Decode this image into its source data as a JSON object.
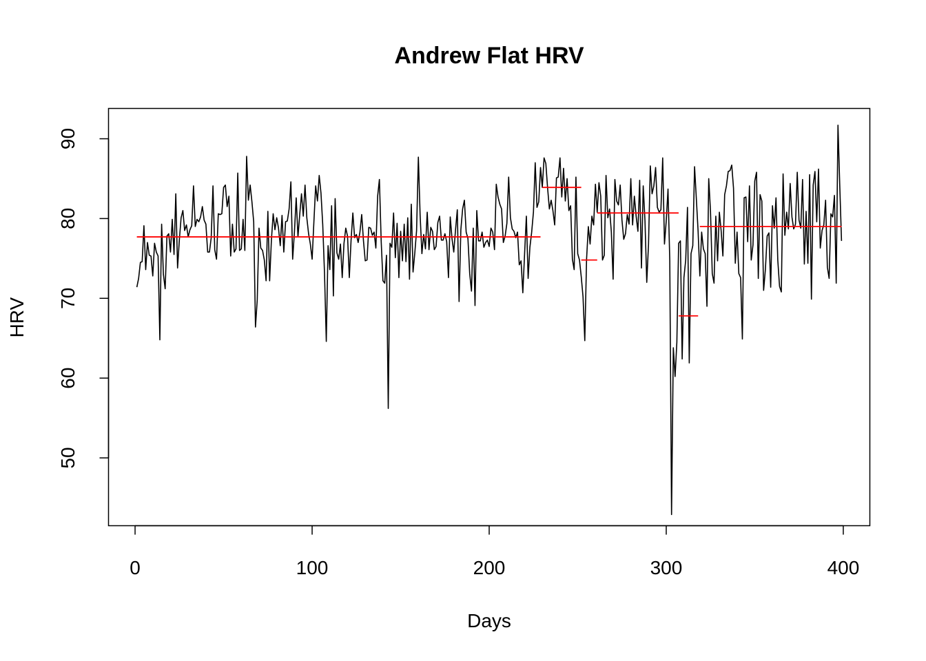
{
  "chart_data": {
    "type": "line",
    "title": "Andrew Flat HRV",
    "xlabel": "Days",
    "ylabel": "HRV",
    "xlim": [
      -15,
      415
    ],
    "ylim": [
      41.5,
      93.8
    ],
    "xticks": [
      0,
      100,
      200,
      300,
      400
    ],
    "yticks": [
      50,
      60,
      70,
      80,
      90
    ],
    "grid": false,
    "legend": "none",
    "colors": {
      "series": "#000000",
      "segments": "#ff0000"
    },
    "series": [
      {
        "values": [
          71.4,
          72.5,
          74.5,
          74.6,
          79.1,
          73.6,
          77.0,
          75.4,
          75.3,
          72.8,
          76.9,
          75.8,
          75.3,
          64.8,
          79.3,
          73.0,
          71.2,
          77.8,
          78.1,
          75.8,
          79.9,
          75.5,
          83.1,
          73.8,
          77.3,
          80.1,
          81.0,
          78.5,
          79.2,
          77.7,
          78.6,
          79.1,
          84.1,
          79.0,
          79.9,
          79.6,
          80.2,
          81.5,
          79.8,
          79.3,
          75.8,
          75.8,
          77.6,
          84.1,
          76.1,
          74.9,
          80.6,
          80.5,
          80.6,
          83.9,
          84.2,
          81.5,
          82.8,
          75.3,
          79.3,
          75.8,
          76.2,
          85.7,
          76.0,
          76.2,
          79.9,
          76.0,
          87.8,
          82.3,
          84.2,
          82.1,
          79.6,
          66.4,
          69.8,
          78.8,
          76.3,
          76.0,
          74.8,
          72.2,
          80.9,
          72.2,
          77.3,
          80.6,
          78.6,
          80.1,
          78.8,
          76.6,
          80.4,
          75.8,
          79.6,
          79.7,
          81.2,
          84.6,
          74.9,
          78.3,
          82.6,
          77.7,
          80.5,
          83.1,
          80.3,
          84.2,
          80.1,
          78.1,
          76.8,
          74.9,
          79.6,
          84.1,
          82.2,
          85.4,
          83.2,
          79.2,
          73.1,
          64.6,
          76.6,
          73.6,
          81.6,
          70.3,
          82.5,
          75.7,
          74.9,
          76.8,
          72.6,
          76.9,
          78.8,
          77.8,
          72.6,
          77.3,
          80.7,
          77.6,
          78.0,
          77.0,
          78.3,
          80.5,
          77.2,
          74.7,
          74.8,
          78.9,
          78.8,
          77.9,
          78.3,
          76.3,
          82.8,
          84.9,
          77.2,
          72.2,
          71.9,
          75.4,
          56.2,
          76.9,
          76.4,
          80.7,
          75.1,
          79.4,
          72.6,
          78.4,
          74.7,
          79.3,
          74.6,
          80.1,
          72.4,
          81.8,
          73.3,
          75.7,
          78.5,
          87.7,
          80.4,
          75.6,
          78.0,
          76.2,
          80.8,
          76.1,
          78.9,
          78.4,
          76.1,
          76.5,
          79.5,
          80.3,
          77.3,
          77.3,
          78.1,
          77.1,
          72.6,
          80.2,
          77.5,
          75.8,
          78.6,
          81.1,
          69.6,
          78.6,
          81.2,
          82.3,
          78.3,
          77.5,
          73.1,
          70.9,
          78.8,
          69.1,
          81.0,
          77.2,
          77.2,
          78.3,
          76.4,
          77.0,
          77.3,
          76.5,
          78.8,
          78.3,
          76.1,
          84.3,
          82.7,
          81.8,
          81.2,
          77.0,
          77.8,
          79.4,
          85.2,
          80.1,
          78.7,
          78.4,
          77.6,
          78.3,
          74.2,
          74.7,
          70.7,
          75.6,
          80.3,
          72.5,
          76.4,
          78.3,
          80.8,
          87.0,
          81.4,
          82.1,
          86.4,
          83.9,
          87.6,
          86.9,
          83.8,
          81.2,
          82.3,
          81.0,
          79.2,
          85.1,
          85.2,
          87.6,
          82.7,
          86.3,
          82.2,
          85.0,
          81.0,
          81.6,
          74.9,
          73.6,
          85.2,
          75.6,
          74.8,
          72.7,
          70.2,
          64.7,
          74.9,
          79.0,
          76.8,
          80.3,
          79.2,
          84.3,
          80.8,
          84.5,
          82.8,
          74.8,
          75.4,
          85.4,
          80.1,
          81.2,
          78.3,
          72.4,
          84.9,
          82.2,
          81.7,
          84.2,
          79.8,
          77.4,
          78.1,
          80.5,
          79.3,
          85.0,
          79.2,
          82.8,
          80.3,
          78.4,
          84.8,
          73.8,
          84.1,
          79.7,
          72.0,
          76.8,
          86.6,
          83.1,
          84.1,
          86.4,
          81.4,
          80.8,
          81.1,
          87.6,
          76.8,
          79.7,
          83.7,
          74.7,
          42.9,
          63.8,
          60.2,
          64.5,
          76.9,
          77.2,
          62.4,
          72.6,
          74.8,
          81.4,
          61.9,
          75.6,
          76.6,
          86.5,
          82.5,
          78.4,
          72.8,
          78.3,
          76.2,
          75.6,
          69.0,
          85.0,
          80.9,
          73.1,
          71.9,
          80.3,
          74.7,
          80.8,
          78.5,
          75.3,
          83.0,
          84.1,
          85.9,
          86.0,
          86.7,
          83.8,
          74.4,
          78.3,
          73.1,
          72.6,
          64.9,
          82.6,
          82.7,
          77.1,
          84.1,
          74.8,
          76.7,
          84.7,
          85.8,
          72.5,
          83.0,
          82.2,
          71.0,
          73.6,
          77.8,
          78.2,
          71.4,
          81.6,
          78.8,
          82.6,
          74.8,
          71.5,
          70.8,
          85.6,
          77.9,
          80.8,
          78.7,
          84.4,
          80.2,
          78.7,
          79.3,
          85.8,
          79.8,
          78.8,
          84.9,
          74.3,
          80.9,
          74.4,
          85.5,
          69.9,
          84.2,
          85.9,
          79.6,
          86.2,
          76.3,
          78.5,
          79.2,
          82.3,
          73.9,
          72.5,
          80.6,
          80.2,
          82.9,
          71.9,
          91.7,
          84.2,
          77.2
        ]
      }
    ],
    "segments": [
      {
        "x": [
          1,
          229
        ],
        "y": 77.7
      },
      {
        "x": [
          230,
          252
        ],
        "y": 83.9
      },
      {
        "x": [
          252,
          261
        ],
        "y": 74.8
      },
      {
        "x": [
          261,
          307
        ],
        "y": 80.7
      },
      {
        "x": [
          307,
          318
        ],
        "y": 67.8
      },
      {
        "x": [
          319,
          399
        ],
        "y": 79.0
      }
    ]
  }
}
